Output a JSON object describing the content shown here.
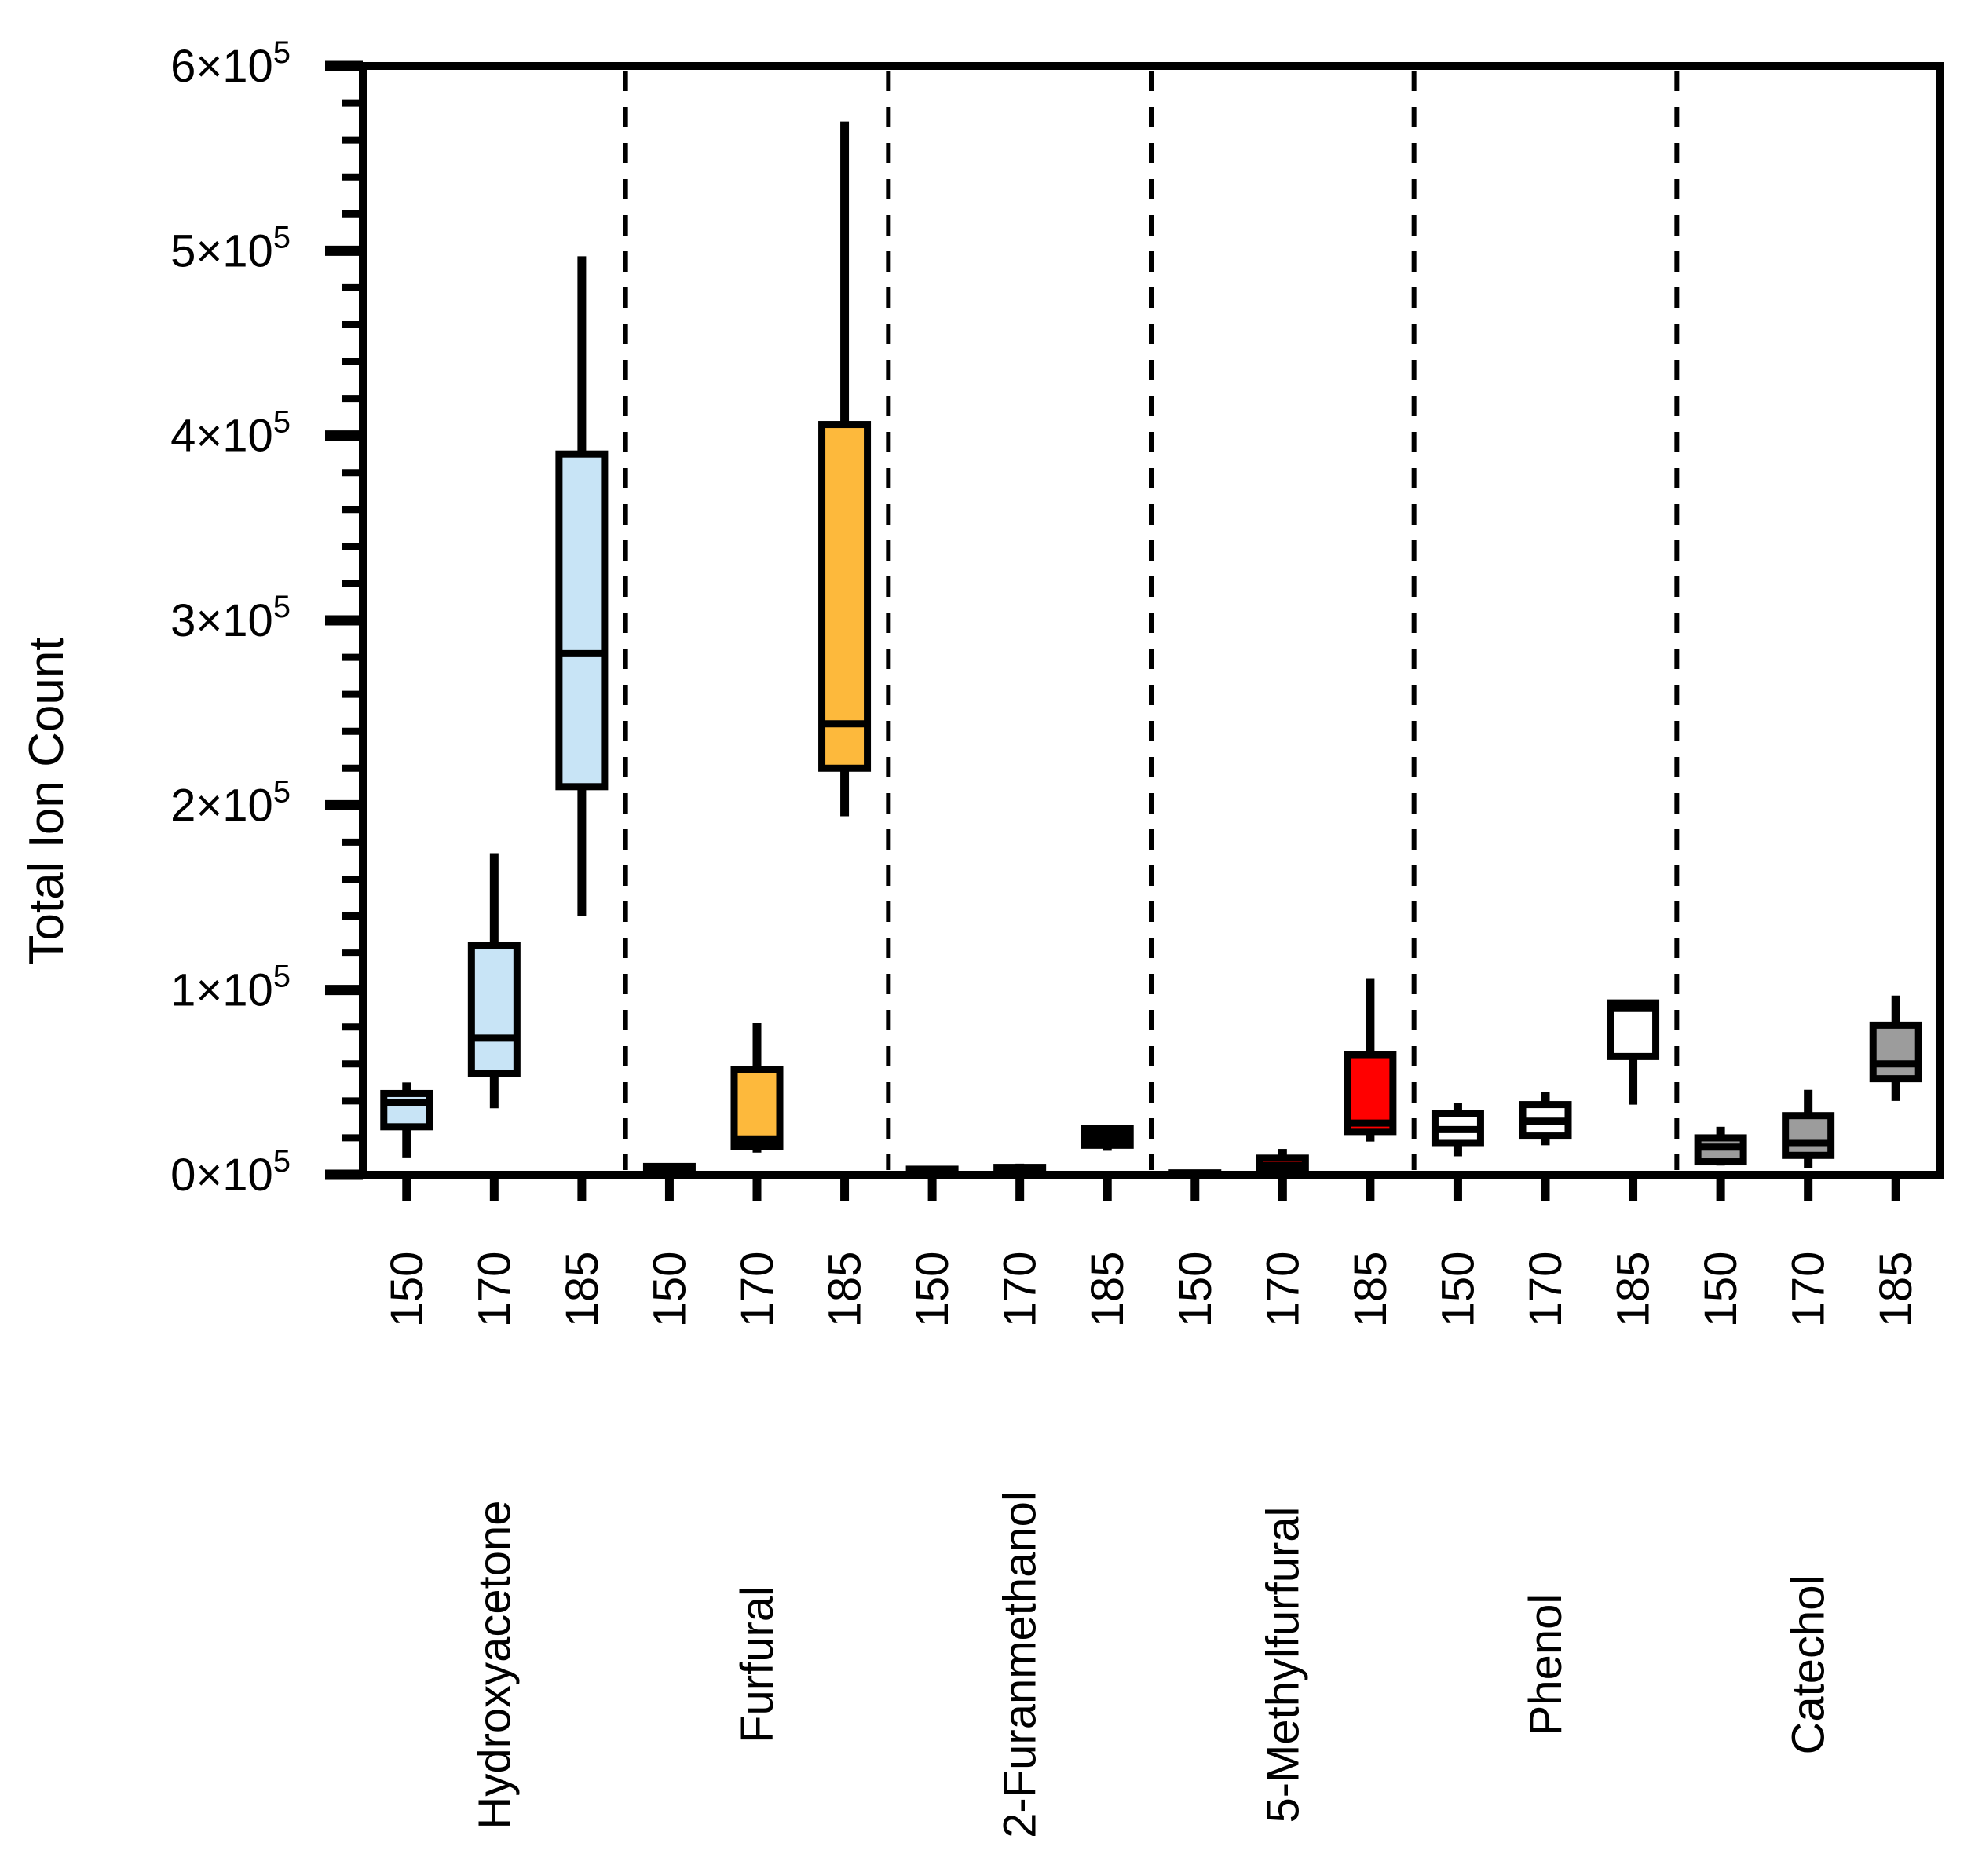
{
  "figure": {
    "y_axis_title": "Total Ion Count"
  },
  "chart_data": {
    "type": "box",
    "title": "",
    "xlabel": "",
    "ylabel": "Total Ion Count",
    "ylim": [
      0,
      600000
    ],
    "y_major_step": 100000,
    "y_minor_step": 20000,
    "y_tick_mantissas": [
      "0",
      "1",
      "2",
      "3",
      "4",
      "5",
      "6"
    ],
    "y_tick_base": "×10",
    "y_tick_exponent": "5",
    "grid": "off",
    "legend": "none",
    "group_separator_style": "dashed",
    "temps": [
      "150",
      "170",
      "185"
    ],
    "groups": [
      {
        "name": "Hydroxyacetone",
        "color": "#c8e4f6",
        "boxes": [
          {
            "temp": "150",
            "whisker_low": 9000,
            "q1": 26000,
            "median": 39000,
            "q3": 44000,
            "whisker_high": 50000
          },
          {
            "temp": "170",
            "whisker_low": 36000,
            "q1": 55000,
            "median": 74000,
            "q3": 124000,
            "whisker_high": 174000
          },
          {
            "temp": "185",
            "whisker_low": 140000,
            "q1": 210000,
            "median": 282000,
            "q3": 390000,
            "whisker_high": 497000
          }
        ]
      },
      {
        "name": "Furfural",
        "color": "#fdb93c",
        "boxes": [
          {
            "temp": "150",
            "whisker_low": 500,
            "q1": 1000,
            "median": 2500,
            "q3": 4500,
            "whisker_high": 5000
          },
          {
            "temp": "170",
            "whisker_low": 12000,
            "q1": 15500,
            "median": 19000,
            "q3": 57000,
            "whisker_high": 82000
          },
          {
            "temp": "185",
            "whisker_low": 194000,
            "q1": 220000,
            "median": 244000,
            "q3": 406000,
            "whisker_high": 570000
          }
        ]
      },
      {
        "name": "2-Furanmethanol",
        "color": "#000000",
        "boxes": [
          {
            "temp": "150",
            "whisker_low": 0,
            "q1": 0,
            "median": 1500,
            "q3": 3000,
            "whisker_high": 3500
          },
          {
            "temp": "170",
            "whisker_low": 0,
            "q1": 1000,
            "median": 2500,
            "q3": 4000,
            "whisker_high": 6000
          },
          {
            "temp": "185",
            "whisker_low": 13000,
            "q1": 16000,
            "median": 20000,
            "q3": 25000,
            "whisker_high": 27000
          }
        ]
      },
      {
        "name": "5-Methylfurfural",
        "color": "#ff0000",
        "boxes": [
          {
            "temp": "150",
            "whisker_low": 0,
            "q1": 0,
            "median": 500,
            "q3": 1000,
            "whisker_high": 1500
          },
          {
            "temp": "170",
            "whisker_low": 0,
            "q1": 1500,
            "median": 5000,
            "q3": 9000,
            "whisker_high": 14000
          },
          {
            "temp": "185",
            "whisker_low": 18000,
            "q1": 23000,
            "median": 28000,
            "q3": 65000,
            "whisker_high": 106000
          }
        ]
      },
      {
        "name": "Phenol",
        "color": "#ffffff",
        "boxes": [
          {
            "temp": "150",
            "whisker_low": 10000,
            "q1": 17000,
            "median": 24500,
            "q3": 33000,
            "whisker_high": 39000
          },
          {
            "temp": "170",
            "whisker_low": 16000,
            "q1": 21000,
            "median": 29000,
            "q3": 38000,
            "whisker_high": 45000
          },
          {
            "temp": "185",
            "whisker_low": 38000,
            "q1": 64000,
            "median": 90000,
            "q3": 93000,
            "whisker_high": 93000
          }
        ]
      },
      {
        "name": "Catechol",
        "color": "#9c9c9c",
        "boxes": [
          {
            "temp": "150",
            "whisker_low": 5000,
            "q1": 7000,
            "median": 15000,
            "q3": 20000,
            "whisker_high": 26000
          },
          {
            "temp": "170",
            "whisker_low": 3500,
            "q1": 10500,
            "median": 17000,
            "q3": 32000,
            "whisker_high": 46000
          },
          {
            "temp": "185",
            "whisker_low": 40000,
            "q1": 52000,
            "median": 60000,
            "q3": 81000,
            "whisker_high": 97000
          }
        ]
      }
    ]
  }
}
